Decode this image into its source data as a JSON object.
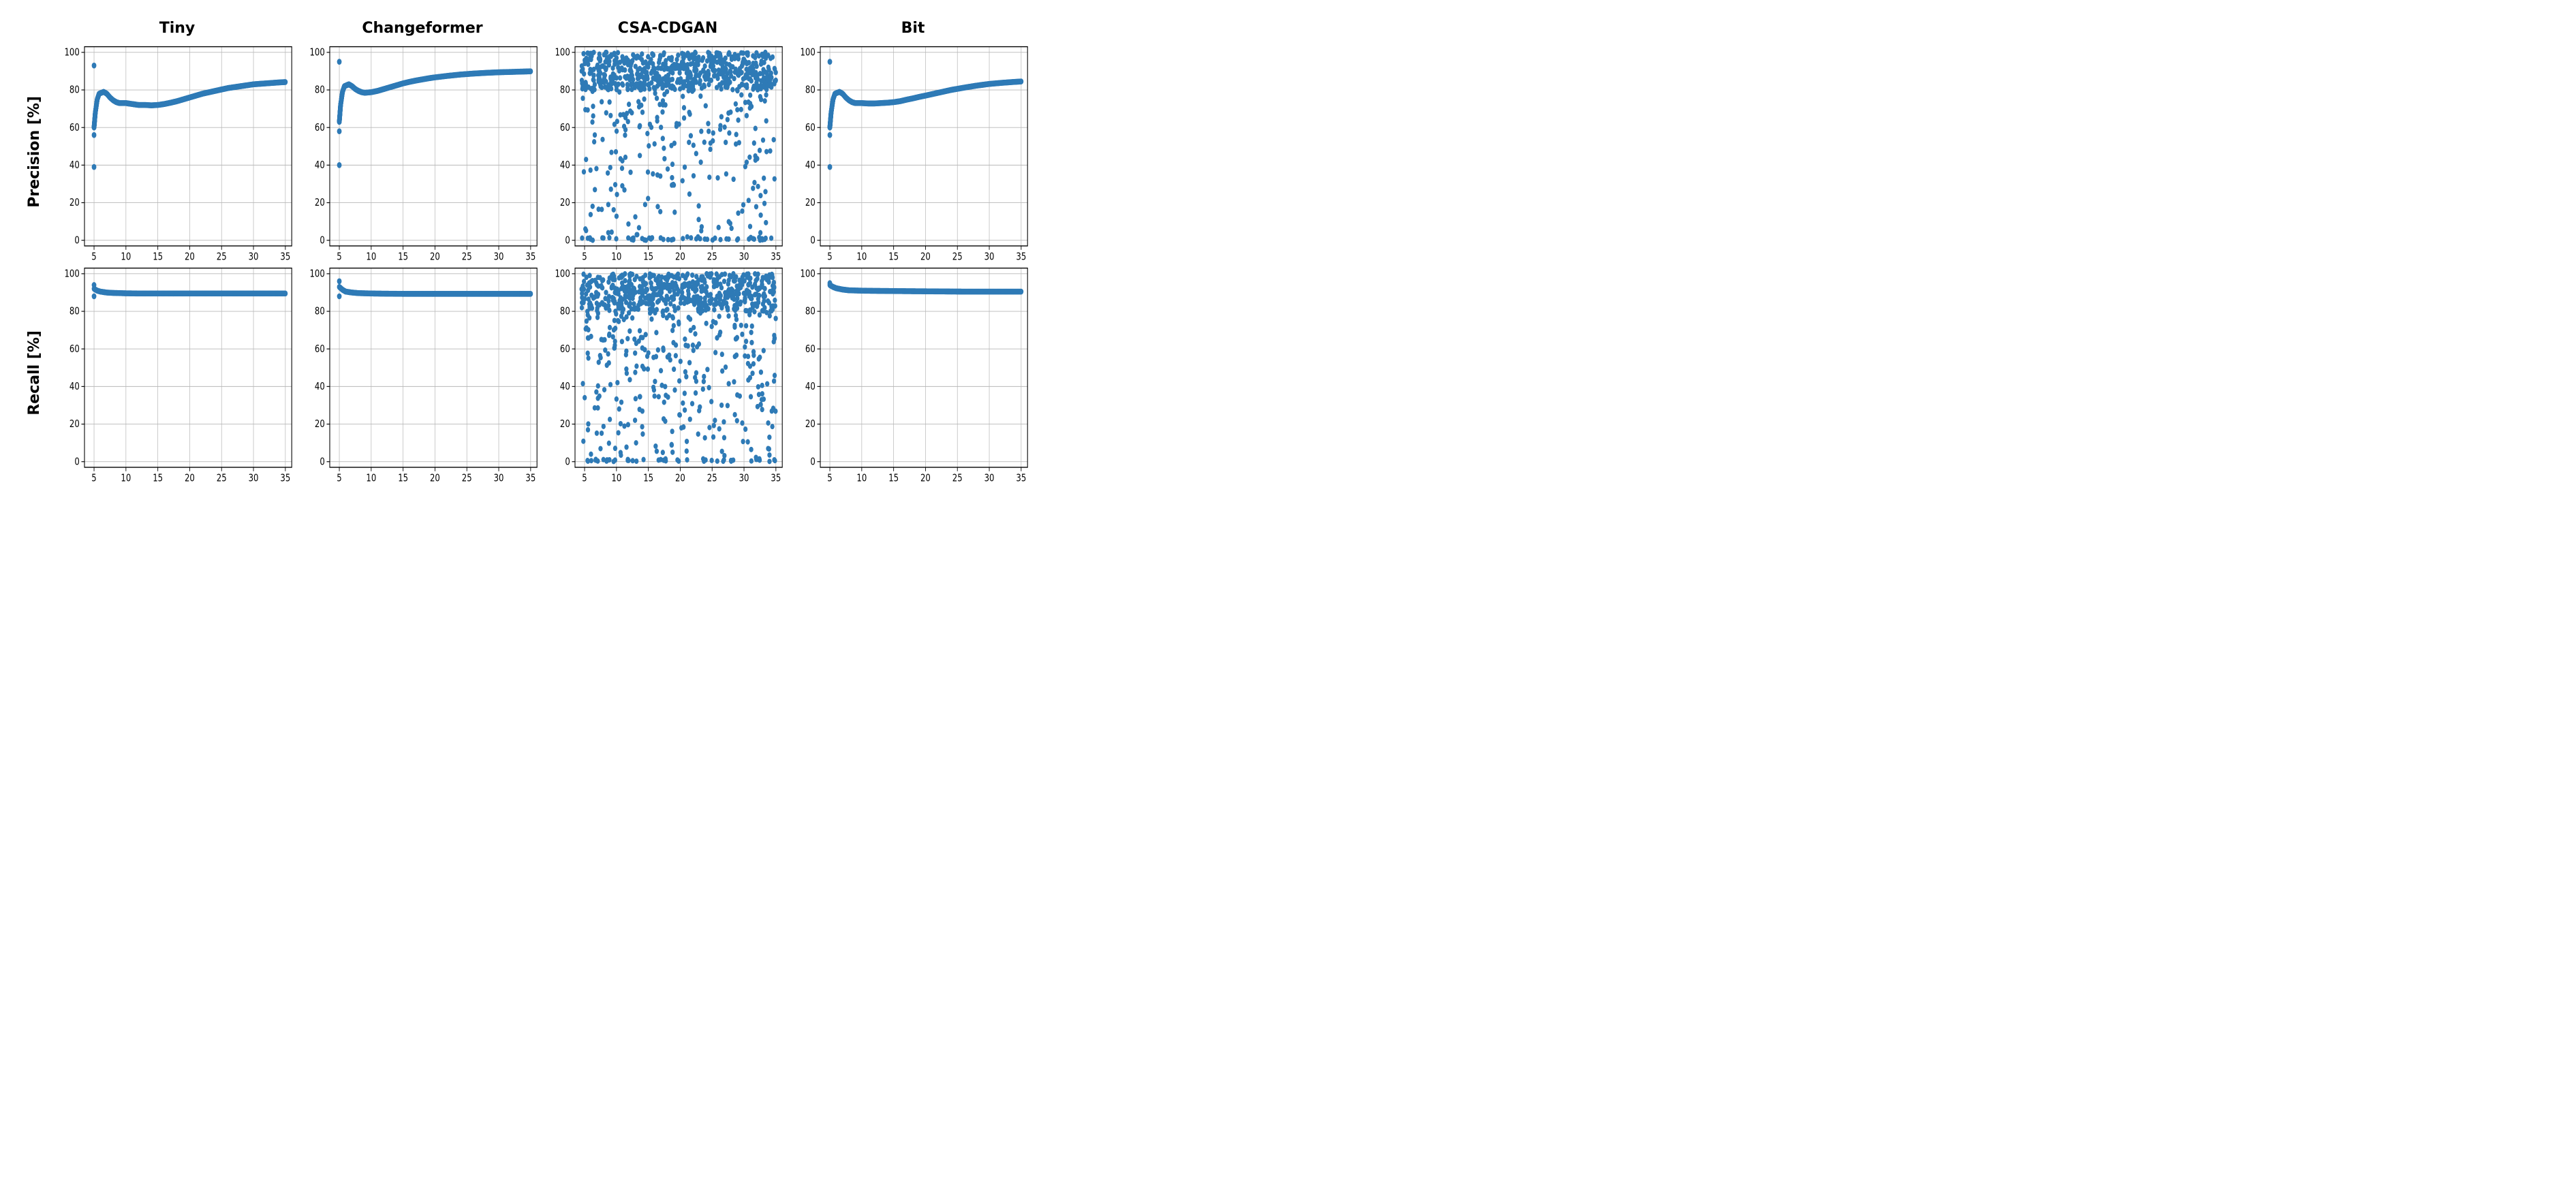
{
  "layout": {
    "cols": [
      "Tiny",
      "Changeformer",
      "CSA-CDGAN",
      "Bit"
    ],
    "rows": [
      "Precision [%]",
      "Recall [%]"
    ]
  },
  "style": {
    "marker_color": "#2e7ab6",
    "marker_radius": 3.8,
    "marker_radius_scatter": 3.5,
    "background_color": "#ffffff",
    "grid_color": "#b8b8b8",
    "axis_color": "#000000",
    "title_fontsize": 22,
    "title_fontweight": 700,
    "tick_fontsize": 13,
    "xlim": [
      3.5,
      36
    ],
    "ylim": [
      -3,
      103
    ],
    "xticks": [
      5,
      10,
      15,
      20,
      25,
      30,
      35
    ],
    "yticks": [
      0,
      20,
      40,
      60,
      80,
      100
    ]
  },
  "panels": [
    [
      {
        "type": "curve",
        "outliers": [
          [
            5,
            93
          ],
          [
            5,
            56
          ],
          [
            5,
            39
          ]
        ],
        "curve": [
          [
            5,
            60
          ],
          [
            5.2,
            68
          ],
          [
            5.5,
            75
          ],
          [
            5.8,
            78
          ],
          [
            6.5,
            79
          ],
          [
            7,
            78
          ],
          [
            7.5,
            76
          ],
          [
            8,
            74.5
          ],
          [
            8.5,
            73.5
          ],
          [
            9,
            73
          ],
          [
            10,
            73
          ],
          [
            11,
            72.5
          ],
          [
            12,
            72
          ],
          [
            13,
            72
          ],
          [
            14,
            71.8
          ],
          [
            15,
            72
          ],
          [
            16,
            72.5
          ],
          [
            17,
            73.2
          ],
          [
            18,
            74
          ],
          [
            19,
            75
          ],
          [
            20,
            76
          ],
          [
            22,
            78
          ],
          [
            24,
            79.5
          ],
          [
            26,
            81
          ],
          [
            28,
            82
          ],
          [
            30,
            83
          ],
          [
            32,
            83.5
          ],
          [
            34,
            84
          ],
          [
            35,
            84.2
          ]
        ]
      },
      {
        "type": "curve",
        "outliers": [
          [
            5,
            95
          ],
          [
            5,
            58
          ],
          [
            5,
            40
          ]
        ],
        "curve": [
          [
            5,
            63
          ],
          [
            5.2,
            72
          ],
          [
            5.5,
            79
          ],
          [
            5.8,
            82
          ],
          [
            6.5,
            83
          ],
          [
            7,
            82
          ],
          [
            7.5,
            80.5
          ],
          [
            8,
            79.5
          ],
          [
            8.5,
            78.8
          ],
          [
            9,
            78.5
          ],
          [
            10,
            78.8
          ],
          [
            11,
            79.5
          ],
          [
            12,
            80.5
          ],
          [
            13,
            81.5
          ],
          [
            14,
            82.5
          ],
          [
            15,
            83.5
          ],
          [
            16,
            84.3
          ],
          [
            17,
            85
          ],
          [
            18,
            85.6
          ],
          [
            19,
            86.2
          ],
          [
            20,
            86.7
          ],
          [
            22,
            87.5
          ],
          [
            24,
            88.2
          ],
          [
            26,
            88.7
          ],
          [
            28,
            89.1
          ],
          [
            30,
            89.4
          ],
          [
            32,
            89.6
          ],
          [
            34,
            89.8
          ],
          [
            35,
            89.9
          ]
        ]
      },
      {
        "type": "random",
        "seed": 11,
        "n": 900,
        "bands": [
          {
            "ylo": 80,
            "yhi": 100,
            "w": 0.7
          },
          {
            "ylo": 60,
            "yhi": 80,
            "w": 0.1
          },
          {
            "ylo": 30,
            "yhi": 60,
            "w": 0.09
          },
          {
            "ylo": 0,
            "yhi": 30,
            "w": 0.06
          },
          {
            "ylo": 0,
            "yhi": 1.5,
            "w": 0.05
          }
        ]
      },
      {
        "type": "curve",
        "outliers": [
          [
            5,
            95
          ],
          [
            5,
            56
          ],
          [
            5,
            39
          ]
        ],
        "curve": [
          [
            5,
            60
          ],
          [
            5.2,
            68
          ],
          [
            5.5,
            75
          ],
          [
            5.8,
            78
          ],
          [
            6.5,
            79
          ],
          [
            7,
            78
          ],
          [
            7.5,
            76
          ],
          [
            8,
            74.5
          ],
          [
            8.5,
            73.5
          ],
          [
            9,
            73
          ],
          [
            10,
            73
          ],
          [
            11,
            72.8
          ],
          [
            12,
            72.8
          ],
          [
            13,
            73
          ],
          [
            14,
            73.2
          ],
          [
            15,
            73.5
          ],
          [
            16,
            74
          ],
          [
            17,
            74.8
          ],
          [
            18,
            75.5
          ],
          [
            19,
            76.3
          ],
          [
            20,
            77
          ],
          [
            22,
            78.5
          ],
          [
            24,
            80
          ],
          [
            26,
            81.2
          ],
          [
            28,
            82.3
          ],
          [
            30,
            83.2
          ],
          [
            32,
            83.8
          ],
          [
            34,
            84.3
          ],
          [
            35,
            84.5
          ]
        ]
      }
    ],
    [
      {
        "type": "curve",
        "outliers": [
          [
            5,
            94
          ],
          [
            5,
            88
          ]
        ],
        "curve": [
          [
            5,
            92
          ],
          [
            5.5,
            91
          ],
          [
            6,
            90.5
          ],
          [
            7,
            90
          ],
          [
            8,
            89.8
          ],
          [
            10,
            89.6
          ],
          [
            12,
            89.5
          ],
          [
            15,
            89.5
          ],
          [
            18,
            89.5
          ],
          [
            22,
            89.5
          ],
          [
            26,
            89.5
          ],
          [
            30,
            89.5
          ],
          [
            35,
            89.5
          ]
        ]
      },
      {
        "type": "curve",
        "outliers": [
          [
            5,
            96
          ],
          [
            5,
            88
          ]
        ],
        "curve": [
          [
            5,
            93
          ],
          [
            5.5,
            91.5
          ],
          [
            6,
            90.5
          ],
          [
            7,
            90
          ],
          [
            8,
            89.7
          ],
          [
            10,
            89.5
          ],
          [
            12,
            89.4
          ],
          [
            15,
            89.3
          ],
          [
            18,
            89.3
          ],
          [
            22,
            89.3
          ],
          [
            26,
            89.3
          ],
          [
            30,
            89.3
          ],
          [
            35,
            89.3
          ]
        ]
      },
      {
        "type": "random",
        "seed": 29,
        "n": 900,
        "bands": [
          {
            "ylo": 80,
            "yhi": 100,
            "w": 0.62
          },
          {
            "ylo": 55,
            "yhi": 80,
            "w": 0.14
          },
          {
            "ylo": 25,
            "yhi": 55,
            "w": 0.12
          },
          {
            "ylo": 0,
            "yhi": 25,
            "w": 0.07
          },
          {
            "ylo": 0,
            "yhi": 1.5,
            "w": 0.05
          }
        ]
      },
      {
        "type": "curve",
        "outliers": [
          [
            5,
            95
          ]
        ],
        "curve": [
          [
            5,
            94
          ],
          [
            5.5,
            93
          ],
          [
            6,
            92.3
          ],
          [
            7,
            91.6
          ],
          [
            8,
            91.2
          ],
          [
            10,
            91
          ],
          [
            12,
            90.9
          ],
          [
            15,
            90.8
          ],
          [
            18,
            90.7
          ],
          [
            22,
            90.6
          ],
          [
            26,
            90.5
          ],
          [
            30,
            90.5
          ],
          [
            35,
            90.5
          ]
        ]
      }
    ]
  ]
}
